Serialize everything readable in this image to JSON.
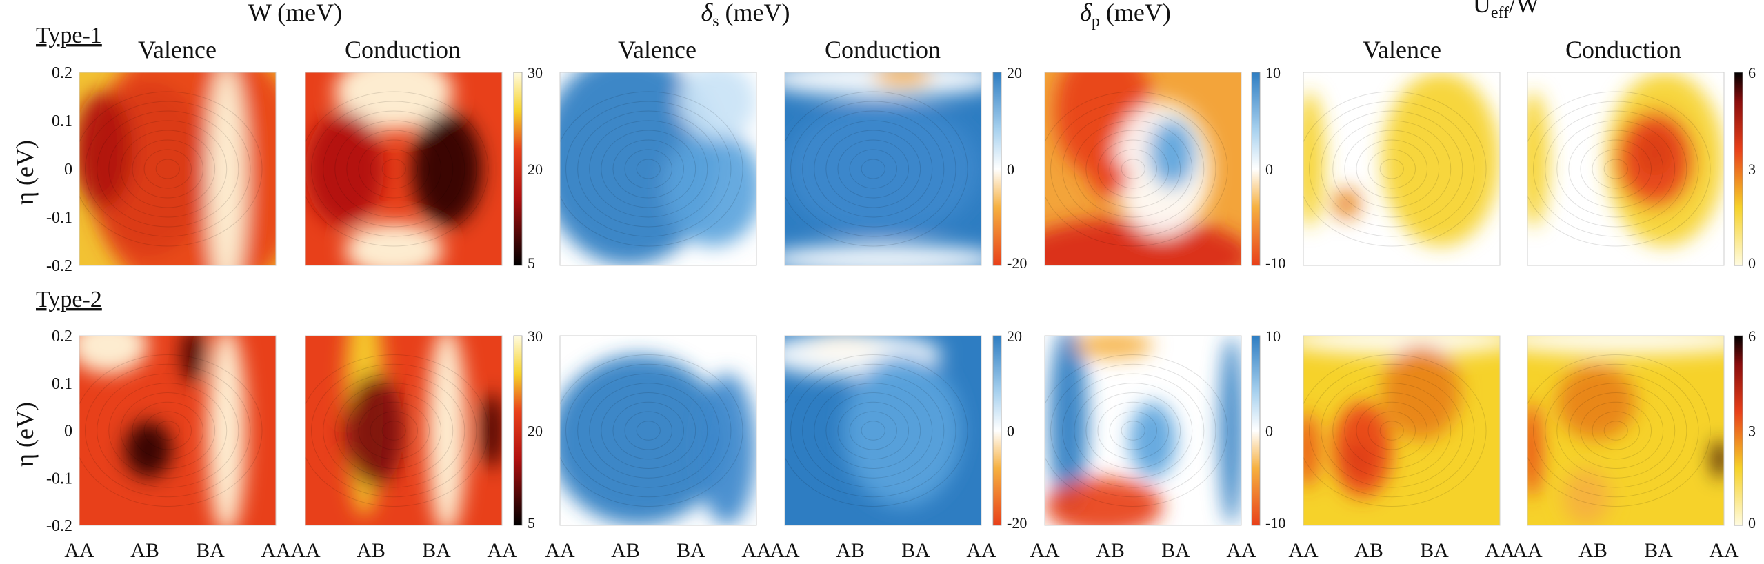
{
  "figure": {
    "groups": [
      {
        "id": "W",
        "title": "W (meV)"
      },
      {
        "id": "ds",
        "title_main": "δ",
        "title_sub": "s",
        "title_rest": " (meV)"
      },
      {
        "id": "dp",
        "title_main": "δ",
        "title_sub": "p",
        "title_rest": " (meV)"
      },
      {
        "id": "U",
        "title_main": "U",
        "title_sub": "eff",
        "title_rest": "/W"
      }
    ],
    "row_labels": [
      "Type-1",
      "Type-2"
    ],
    "band_labels": {
      "valence": "Valence",
      "conduction": "Conduction"
    },
    "y_axis_label": "η (eV)",
    "y_ticks": [
      "0.2",
      "0.1",
      "0",
      "-0.1",
      "-0.2"
    ],
    "x_ticks": [
      "AA",
      "AB",
      "BA",
      "AA"
    ],
    "colorbars": {
      "W": {
        "ticks_top": "30",
        "ticks_mid": "20",
        "ticks_bot": "5",
        "low": "#000000",
        "mid": "#e8401a",
        "high": "#fffbe0"
      },
      "ds": {
        "ticks_top": "20",
        "ticks_mid": "0",
        "ticks_bot": "-20",
        "low": "#e8401a",
        "mid": "#ffffff",
        "high": "#2e7dc2"
      },
      "dp": {
        "ticks_top": "10",
        "ticks_mid": "0",
        "ticks_bot": "-10",
        "low": "#e8401a",
        "mid": "#ffffff",
        "high": "#2e7dc2"
      },
      "U": {
        "ticks_top": "6",
        "ticks_mid": "3",
        "ticks_bot": "0",
        "low": "#fffbe0",
        "mid": "#e8401a",
        "high": "#000000"
      }
    }
  },
  "chart_data": [
    {
      "type": "heatmap",
      "title": "W (meV) — Type-1 Valence",
      "xlabel": "",
      "ylabel": "η (eV)",
      "x_categories": [
        "AA",
        "AB",
        "BA",
        "AA"
      ],
      "ylim": [
        -0.2,
        0.2
      ],
      "zlim": [
        5,
        30
      ]
    },
    {
      "type": "heatmap",
      "title": "W (meV) — Type-1 Conduction",
      "x_categories": [
        "AA",
        "AB",
        "BA",
        "AA"
      ],
      "ylim": [
        -0.2,
        0.2
      ],
      "zlim": [
        5,
        30
      ]
    },
    {
      "type": "heatmap",
      "title": "δs (meV) — Type-1 Valence",
      "x_categories": [
        "AA",
        "AB",
        "BA",
        "AA"
      ],
      "ylim": [
        -0.2,
        0.2
      ],
      "zlim": [
        -20,
        20
      ]
    },
    {
      "type": "heatmap",
      "title": "δs (meV) — Type-1 Conduction",
      "x_categories": [
        "AA",
        "AB",
        "BA",
        "AA"
      ],
      "ylim": [
        -0.2,
        0.2
      ],
      "zlim": [
        -20,
        20
      ]
    },
    {
      "type": "heatmap",
      "title": "δp (meV) — Type-1",
      "x_categories": [
        "AA",
        "AB",
        "BA",
        "AA"
      ],
      "ylim": [
        -0.2,
        0.2
      ],
      "zlim": [
        -10,
        10
      ]
    },
    {
      "type": "heatmap",
      "title": "Ueff/W — Type-1 Valence",
      "x_categories": [
        "AA",
        "AB",
        "BA",
        "AA"
      ],
      "ylim": [
        -0.2,
        0.2
      ],
      "zlim": [
        0,
        6
      ]
    },
    {
      "type": "heatmap",
      "title": "Ueff/W — Type-1 Conduction",
      "x_categories": [
        "AA",
        "AB",
        "BA",
        "AA"
      ],
      "ylim": [
        -0.2,
        0.2
      ],
      "zlim": [
        0,
        6
      ]
    },
    {
      "type": "heatmap",
      "title": "W (meV) — Type-2 Valence",
      "x_categories": [
        "AA",
        "AB",
        "BA",
        "AA"
      ],
      "ylim": [
        -0.2,
        0.2
      ],
      "zlim": [
        5,
        30
      ]
    },
    {
      "type": "heatmap",
      "title": "W (meV) — Type-2 Conduction",
      "x_categories": [
        "AA",
        "AB",
        "BA",
        "AA"
      ],
      "ylim": [
        -0.2,
        0.2
      ],
      "zlim": [
        5,
        30
      ]
    },
    {
      "type": "heatmap",
      "title": "δs (meV) — Type-2 Valence",
      "x_categories": [
        "AA",
        "AB",
        "BA",
        "AA"
      ],
      "ylim": [
        -0.2,
        0.2
      ],
      "zlim": [
        -20,
        20
      ]
    },
    {
      "type": "heatmap",
      "title": "δs (meV) — Type-2 Conduction",
      "x_categories": [
        "AA",
        "AB",
        "BA",
        "AA"
      ],
      "ylim": [
        -0.2,
        0.2
      ],
      "zlim": [
        -20,
        20
      ]
    },
    {
      "type": "heatmap",
      "title": "δp (meV) — Type-2",
      "x_categories": [
        "AA",
        "AB",
        "BA",
        "AA"
      ],
      "ylim": [
        -0.2,
        0.2
      ],
      "zlim": [
        -10,
        10
      ]
    },
    {
      "type": "heatmap",
      "title": "Ueff/W — Type-2 Valence",
      "x_categories": [
        "AA",
        "AB",
        "BA",
        "AA"
      ],
      "ylim": [
        -0.2,
        0.2
      ],
      "zlim": [
        0,
        6
      ]
    },
    {
      "type": "heatmap",
      "title": "Ueff/W — Type-2 Conduction",
      "x_categories": [
        "AA",
        "AB",
        "BA",
        "AA"
      ],
      "ylim": [
        -0.2,
        0.2
      ],
      "zlim": [
        0,
        6
      ]
    }
  ]
}
